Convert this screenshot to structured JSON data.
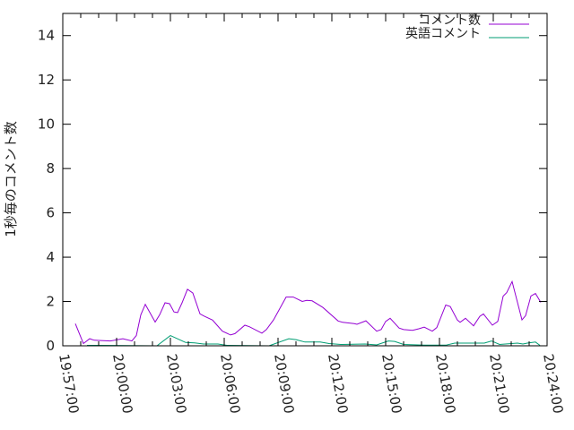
{
  "chart_data": {
    "type": "line",
    "title": "",
    "xlabel": "",
    "ylabel": "1秒毎のコメント数",
    "xlim": [
      "19:57:00",
      "20:24:00"
    ],
    "ylim": [
      0,
      15
    ],
    "x_ticks": [
      "19:57:00",
      "20:00:00",
      "20:03:00",
      "20:06:00",
      "20:09:00",
      "20:12:00",
      "20:15:00",
      "20:18:00",
      "20:21:00",
      "20:24:00"
    ],
    "y_ticks": [
      "0",
      "2",
      "4",
      "6",
      "8",
      "10",
      "12",
      "14"
    ],
    "grid": false,
    "legend_placement": "top-right",
    "series": [
      {
        "name": "コメント数",
        "color": "#9400d3",
        "points": [
          [
            "19:57:42",
            1.0
          ],
          [
            "19:58:09",
            0.1
          ],
          [
            "19:58:30",
            0.32
          ],
          [
            "19:58:45",
            0.25
          ],
          [
            "19:59:39",
            0.22
          ],
          [
            "20:00:21",
            0.32
          ],
          [
            "20:00:51",
            0.22
          ],
          [
            "20:01:06",
            0.46
          ],
          [
            "20:01:21",
            1.4
          ],
          [
            "20:01:36",
            1.87
          ],
          [
            "20:02:09",
            1.07
          ],
          [
            "20:02:24",
            1.4
          ],
          [
            "20:02:42",
            1.94
          ],
          [
            "20:02:57",
            1.9
          ],
          [
            "20:03:12",
            1.53
          ],
          [
            "20:03:24",
            1.5
          ],
          [
            "20:03:39",
            1.94
          ],
          [
            "20:03:57",
            2.55
          ],
          [
            "20:04:15",
            2.38
          ],
          [
            "20:04:39",
            1.44
          ],
          [
            "20:04:54",
            1.33
          ],
          [
            "20:05:21",
            1.16
          ],
          [
            "20:05:36",
            0.93
          ],
          [
            "20:05:54",
            0.66
          ],
          [
            "20:06:21",
            0.49
          ],
          [
            "20:06:36",
            0.55
          ],
          [
            "20:07:09",
            0.93
          ],
          [
            "20:07:24",
            0.86
          ],
          [
            "20:08:06",
            0.57
          ],
          [
            "20:08:21",
            0.73
          ],
          [
            "20:08:45",
            1.17
          ],
          [
            "20:09:27",
            2.2
          ],
          [
            "20:09:51",
            2.2
          ],
          [
            "20:10:21",
            2.0
          ],
          [
            "20:10:36",
            2.05
          ],
          [
            "20:10:54",
            2.03
          ],
          [
            "20:11:30",
            1.73
          ],
          [
            "20:12:21",
            1.12
          ],
          [
            "20:12:36",
            1.06
          ],
          [
            "20:13:15",
            1.0
          ],
          [
            "20:13:24",
            0.97
          ],
          [
            "20:13:54",
            1.13
          ],
          [
            "20:14:30",
            0.66
          ],
          [
            "20:14:45",
            0.73
          ],
          [
            "20:15:00",
            1.1
          ],
          [
            "20:15:15",
            1.24
          ],
          [
            "20:15:45",
            0.8
          ],
          [
            "20:16:00",
            0.73
          ],
          [
            "20:16:30",
            0.7
          ],
          [
            "20:16:51",
            0.77
          ],
          [
            "20:17:09",
            0.84
          ],
          [
            "20:17:36",
            0.66
          ],
          [
            "20:17:51",
            0.82
          ],
          [
            "20:18:21",
            1.84
          ],
          [
            "20:18:36",
            1.77
          ],
          [
            "20:19:00",
            1.16
          ],
          [
            "20:19:09",
            1.06
          ],
          [
            "20:19:27",
            1.24
          ],
          [
            "20:19:54",
            0.9
          ],
          [
            "20:20:15",
            1.33
          ],
          [
            "20:20:27",
            1.44
          ],
          [
            "20:20:57",
            0.93
          ],
          [
            "20:21:15",
            1.1
          ],
          [
            "20:21:33",
            2.24
          ],
          [
            "20:21:45",
            2.4
          ],
          [
            "20:22:03",
            2.9
          ],
          [
            "20:22:36",
            1.17
          ],
          [
            "20:22:48",
            1.36
          ],
          [
            "20:23:06",
            2.25
          ],
          [
            "20:23:21",
            2.36
          ],
          [
            "20:23:39",
            1.96
          ]
        ]
      },
      {
        "name": "英語コメント",
        "color": "#009e73",
        "points": [
          [
            "19:58:21",
            0.02
          ],
          [
            "19:58:51",
            0.02
          ],
          [
            "20:02:15",
            0
          ],
          [
            "20:03:00",
            0.46
          ],
          [
            "20:03:51",
            0.15
          ],
          [
            "20:04:21",
            0.13
          ],
          [
            "20:04:51",
            0.08
          ],
          [
            "20:05:39",
            0.08
          ],
          [
            "20:06:09",
            0.02
          ],
          [
            "20:08:30",
            0
          ],
          [
            "20:09:36",
            0.32
          ],
          [
            "20:10:00",
            0.28
          ],
          [
            "20:10:30",
            0.17
          ],
          [
            "20:11:21",
            0.17
          ],
          [
            "20:11:51",
            0.1
          ],
          [
            "20:12:30",
            0.06
          ],
          [
            "20:13:51",
            0.08
          ],
          [
            "20:14:30",
            0.04
          ],
          [
            "20:15:09",
            0.22
          ],
          [
            "20:15:30",
            0.2
          ],
          [
            "20:16:00",
            0.06
          ],
          [
            "20:17:09",
            0.03
          ],
          [
            "20:18:21",
            0.03
          ],
          [
            "20:18:51",
            0.12
          ],
          [
            "20:20:30",
            0.12
          ],
          [
            "20:20:54",
            0.22
          ],
          [
            "20:21:21",
            0.06
          ],
          [
            "20:22:21",
            0.12
          ],
          [
            "20:22:39",
            0.08
          ],
          [
            "20:22:54",
            0.12
          ],
          [
            "20:23:21",
            0.17
          ],
          [
            "20:23:36",
            0.02
          ]
        ]
      }
    ]
  }
}
